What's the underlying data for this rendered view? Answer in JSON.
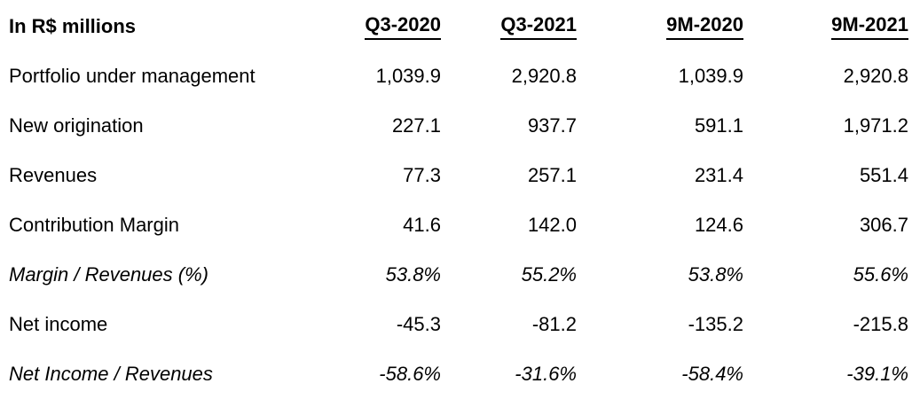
{
  "colors": {
    "background": "#ffffff",
    "text": "#000000"
  },
  "chart_data": {
    "type": "table",
    "title": "In R$ millions",
    "columns": [
      "Q3-2020",
      "Q3-2021",
      "9M-2020",
      "9M-2021"
    ],
    "rows": [
      {
        "label": "Portfolio under management",
        "values": [
          "1,039.9",
          "2,920.8",
          "1,039.9",
          "2,920.8"
        ],
        "style": "normal"
      },
      {
        "label": "New origination",
        "values": [
          "227.1",
          "937.7",
          "591.1",
          "1,971.2"
        ],
        "style": "normal"
      },
      {
        "label": "Revenues",
        "values": [
          "77.3",
          "257.1",
          "231.4",
          "551.4"
        ],
        "style": "normal"
      },
      {
        "label": "Contribution Margin",
        "values": [
          "41.6",
          "142.0",
          "124.6",
          "306.7"
        ],
        "style": "normal"
      },
      {
        "label": "Margin / Revenues (%)",
        "values": [
          "53.8%",
          "55.2%",
          "53.8%",
          "55.6%"
        ],
        "style": "italic"
      },
      {
        "label": "Net income",
        "values": [
          "-45.3",
          "-81.2",
          "-135.2",
          "-215.8"
        ],
        "style": "normal"
      },
      {
        "label": "Net Income / Revenues",
        "values": [
          "-58.6%",
          "-31.6%",
          "-58.4%",
          "-39.1%"
        ],
        "style": "italic"
      }
    ]
  }
}
